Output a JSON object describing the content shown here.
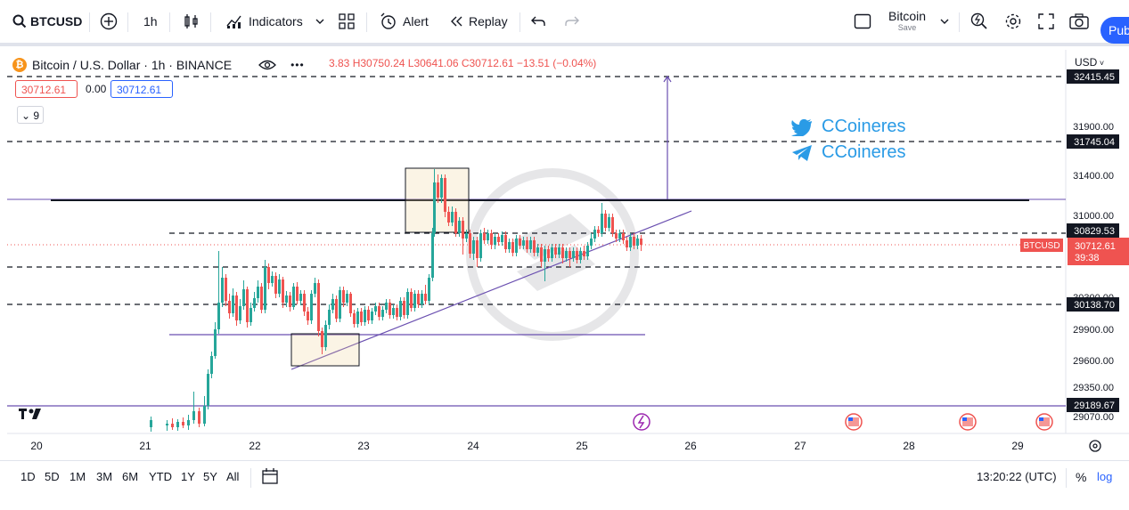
{
  "toolbar": {
    "symbol": "BTCUSD",
    "interval": "1h",
    "indicators": "Indicators",
    "alert": "Alert",
    "replay": "Replay",
    "layout_name": "Bitcoin",
    "layout_sub": "Save",
    "publish": "Pub"
  },
  "legend": {
    "title": "Bitcoin / U.S. Dollar · 1h · BINANCE",
    "ohlc_prefix": "3.83",
    "high": "H30750.24",
    "low": "L30641.06",
    "close": "C30712.61",
    "change": "−13.51 (−0.04%)",
    "bid": "30712.61",
    "spread": "0.00",
    "ask": "30712.61",
    "indicators_count": "9"
  },
  "price_axis": {
    "currency": "USD",
    "ticks": [
      "31900.00",
      "31400.00",
      "31000.00",
      "30300.00",
      "29900.00",
      "29600.00",
      "29350.00",
      "29070.00"
    ],
    "marked": [
      {
        "value": "32415.45",
        "y": 86
      },
      {
        "value": "31745.04",
        "y": 159
      },
      {
        "value": "30829.53",
        "y": 259
      },
      {
        "value": "30138.70",
        "y": 342
      },
      {
        "value": "29189.67",
        "y": 455
      }
    ],
    "last_symbol": "BTCUSD",
    "last_price": "30712.61",
    "countdown": "39:38"
  },
  "time_axis": {
    "labels": [
      "20",
      "21",
      "22",
      "23",
      "24",
      "25",
      "26",
      "27",
      "28",
      "29"
    ]
  },
  "watermark": {
    "twitter": "CCoineres",
    "telegram": "CCoineres"
  },
  "bottom": {
    "ranges": [
      "1D",
      "5D",
      "1M",
      "3M",
      "6M",
      "YTD",
      "1Y",
      "5Y",
      "All"
    ],
    "time": "13:20:22 (UTC)",
    "percent": "%",
    "log": "log"
  },
  "colors": {
    "up": "#26a69a",
    "down": "#ef5350",
    "accent": "#2962ff",
    "drawing": "#6a4fb0"
  }
}
